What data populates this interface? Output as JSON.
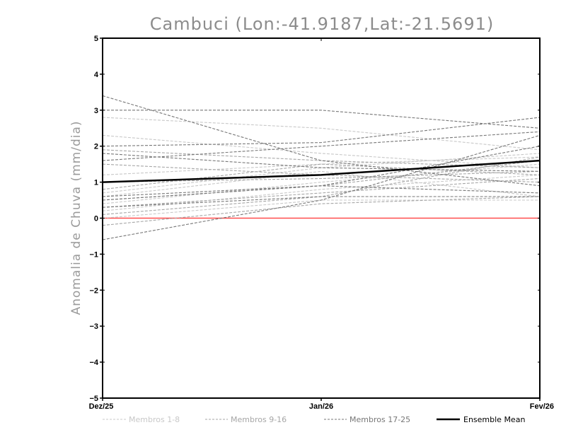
{
  "chart_data": {
    "type": "line",
    "title": "Cambuci (Lon:-41.9187,Lat:-21.5691)",
    "ylabel": "Anomalia de Chuva (mm/dia)",
    "xlabel": "",
    "categories": [
      "Dez/25",
      "Jan/26",
      "Fev/26"
    ],
    "ylim": [
      -5,
      5
    ],
    "yticks": [
      -5,
      -4,
      -3,
      -2,
      -1,
      0,
      1,
      2,
      3,
      4,
      5
    ],
    "zero_line_color": "#ff4d4d",
    "groups": [
      {
        "name": "Membros 1-8",
        "color": "#c8c8c8",
        "series": [
          [
            2.3,
            1.8,
            1.4
          ],
          [
            2.8,
            2.5,
            1.9
          ],
          [
            1.2,
            1.5,
            1.7
          ],
          [
            0.6,
            1.3,
            0.6
          ],
          [
            0.4,
            1.0,
            1.5
          ],
          [
            0.2,
            0.8,
            1.2
          ],
          [
            0.0,
            0.5,
            0.5
          ],
          [
            0.7,
            1.4,
            1.8
          ]
        ]
      },
      {
        "name": "Membros 9-16",
        "color": "#a6a6a6",
        "series": [
          [
            1.9,
            1.6,
            1.4
          ],
          [
            1.5,
            1.2,
            1.0
          ],
          [
            1.0,
            1.1,
            1.3
          ],
          [
            0.5,
            0.9,
            1.6
          ],
          [
            0.3,
            0.7,
            1.1
          ],
          [
            0.1,
            0.6,
            1.7
          ],
          [
            -0.2,
            0.4,
            0.6
          ],
          [
            0.8,
            1.5,
            1.2
          ]
        ]
      },
      {
        "name": "Membros 17-25",
        "color": "#777777",
        "series": [
          [
            3.4,
            1.6,
            0.9
          ],
          [
            3.0,
            3.0,
            2.5
          ],
          [
            2.0,
            2.1,
            2.8
          ],
          [
            1.6,
            2.0,
            2.4
          ],
          [
            1.8,
            1.4,
            1.3
          ],
          [
            0.5,
            0.9,
            2.0
          ],
          [
            0.3,
            0.6,
            0.6
          ],
          [
            -0.6,
            0.5,
            2.3
          ],
          [
            0.6,
            0.9,
            0.7
          ]
        ]
      }
    ],
    "ensemble_mean": {
      "name": "Ensemble Mean",
      "color": "#000000",
      "values": [
        1.0,
        1.2,
        1.6
      ]
    }
  }
}
